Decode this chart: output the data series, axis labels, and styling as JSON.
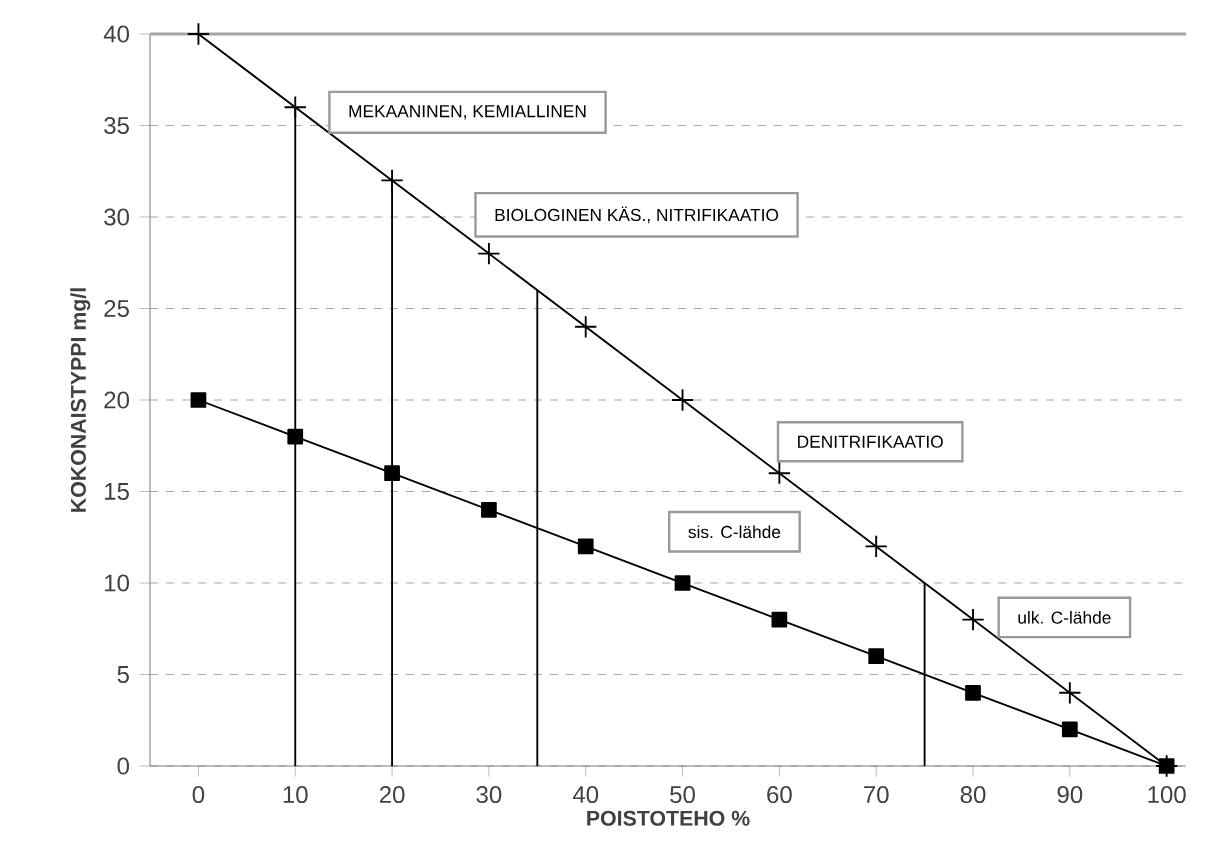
{
  "chart_data": {
    "type": "line",
    "xlabel": "POISTOTEHO     %",
    "ylabel": "KOKONAISTYPPI     mg/l",
    "x": [
      0,
      10,
      20,
      30,
      40,
      50,
      60,
      70,
      80,
      90,
      100
    ],
    "series": [
      {
        "color": "#000000",
        "marker": "cross",
        "values": [
          40,
          36,
          32,
          28,
          24,
          20,
          16,
          12,
          8,
          4,
          0
        ]
      },
      {
        "color": "#000000",
        "marker": "square",
        "values": [
          20,
          18,
          16,
          14,
          12,
          10,
          8,
          6,
          4,
          2,
          0
        ]
      }
    ],
    "xlim": [
      -5,
      102
    ],
    "ylim": [
      0,
      40
    ],
    "xticks": [
      0,
      10,
      20,
      30,
      40,
      50,
      60,
      70,
      80,
      90,
      100
    ],
    "yticks": [
      0,
      5,
      10,
      15,
      20,
      25,
      30,
      35,
      40
    ],
    "grid": "y",
    "line_style": "solid",
    "ref_lines": [
      {
        "axis": "x",
        "value": 10,
        "color": "#000000"
      },
      {
        "axis": "x",
        "value": 20,
        "color": "#000000"
      },
      {
        "axis": "x",
        "value": 35,
        "color": "#000000"
      },
      {
        "axis": "x",
        "value": 75,
        "color": "#000000"
      }
    ],
    "annotations": [
      "MEKAANINEN, KEMIALLINEN",
      "BIOLOGINEN KÄS., NITRIFIKAATIO",
      "DENITRIFIKAATIO",
      "sis. C-lähde",
      "ulk. C-lähde"
    ]
  }
}
